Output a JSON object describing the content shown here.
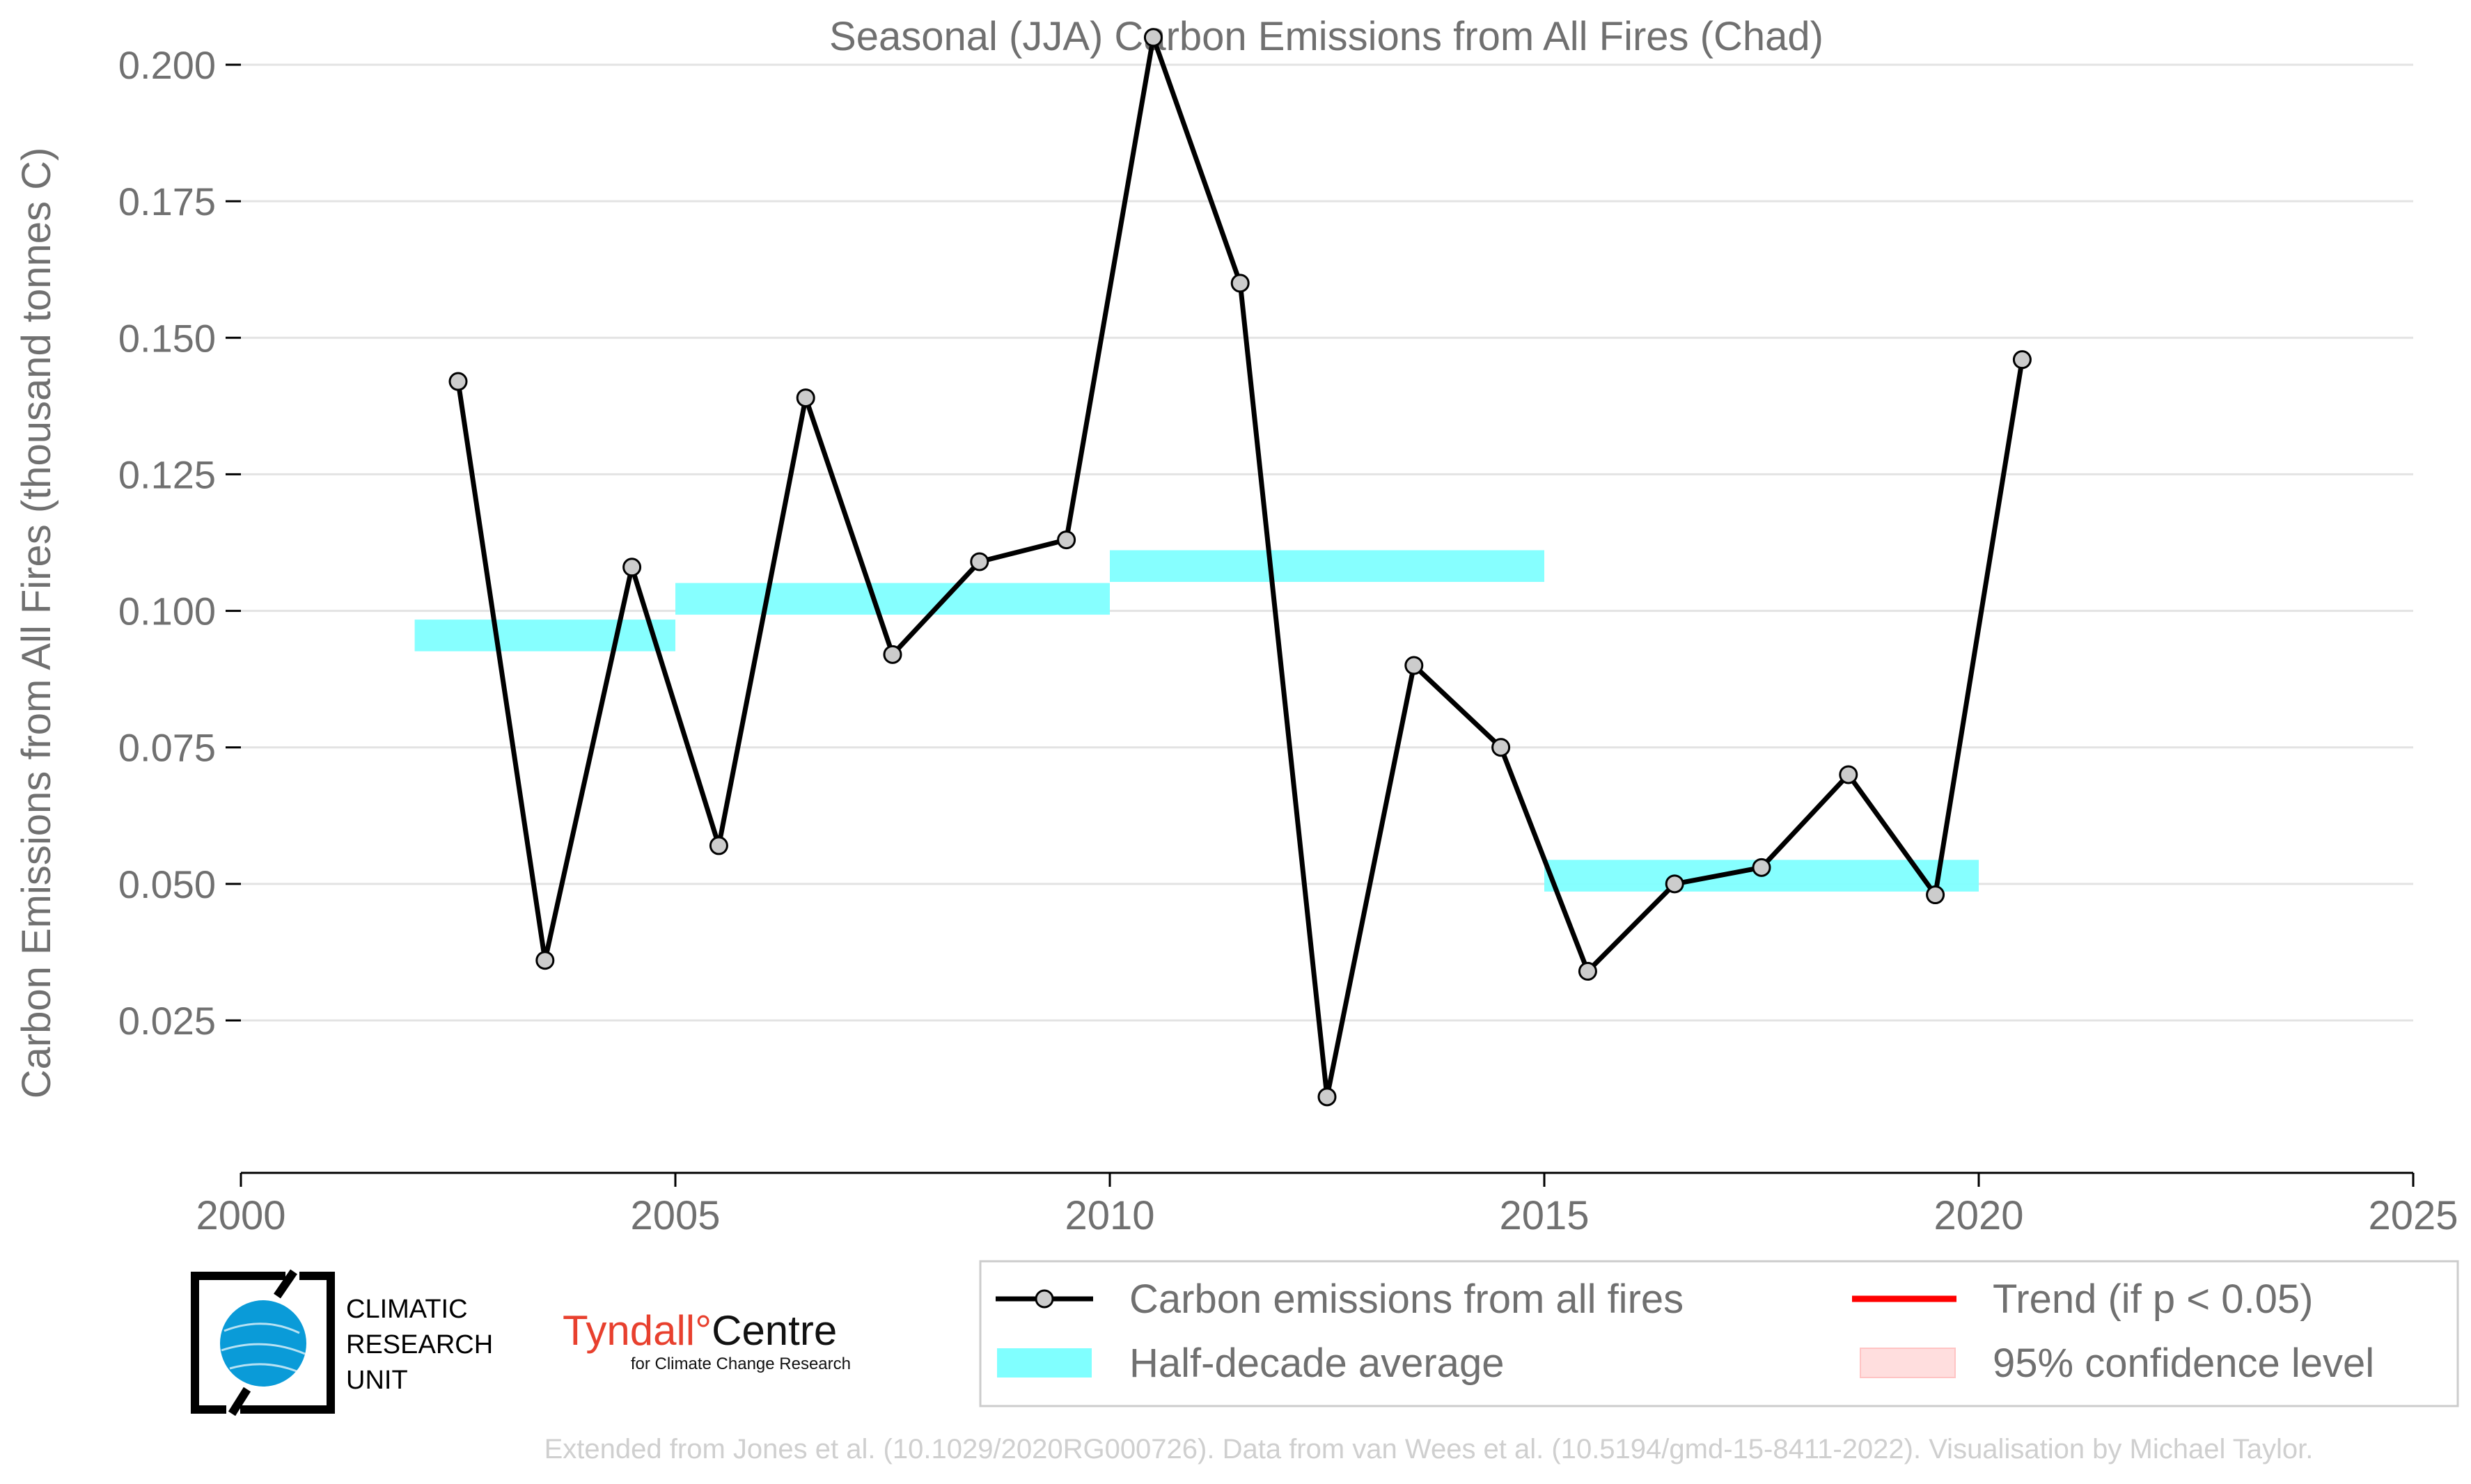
{
  "chart_data": {
    "type": "line",
    "title": "Seasonal (JJA) Carbon Emissions from All Fires (Chad)",
    "xlabel": "",
    "ylabel": "Carbon Emissions from All Fires (thousand tonnes C)",
    "xlim": [
      2000,
      2025
    ],
    "ylim": [
      -0.003,
      0.21
    ],
    "x_ticks": [
      2000,
      2005,
      2010,
      2015,
      2020,
      2025
    ],
    "y_ticks": [
      0.025,
      0.05,
      0.075,
      0.1,
      0.125,
      0.15,
      0.175,
      0.2
    ],
    "y_tick_labels": [
      "0.025",
      "0.050",
      "0.075",
      "0.100",
      "0.125",
      "0.150",
      "0.175",
      "0.200"
    ],
    "grid": "horizontal",
    "series": [
      {
        "name": "Carbon emissions from all fires",
        "x": [
          2002.5,
          2003.5,
          2004.5,
          2005.5,
          2006.5,
          2007.5,
          2008.5,
          2009.5,
          2010.5,
          2011.5,
          2012.5,
          2013.5,
          2014.5,
          2015.5,
          2016.5,
          2017.5,
          2018.5,
          2019.5,
          2020.5
        ],
        "values": [
          0.142,
          0.036,
          0.108,
          0.057,
          0.139,
          0.092,
          0.109,
          0.113,
          0.205,
          0.16,
          0.011,
          0.09,
          0.075,
          0.034,
          0.05,
          0.053,
          0.07,
          0.048,
          0.146
        ],
        "color": "#000000"
      }
    ],
    "half_decade_average": {
      "name": "Half-decade average",
      "color": "#80ffff",
      "segments": [
        {
          "x0": 2002,
          "x1": 2005,
          "value": 0.0955
        },
        {
          "x0": 2005,
          "x1": 2010,
          "value": 0.1022
        },
        {
          "x0": 2010,
          "x1": 2015,
          "value": 0.1082
        },
        {
          "x0": 2015,
          "x1": 2020,
          "value": 0.0515
        }
      ]
    },
    "legend": [
      {
        "label": "Carbon emissions from all fires",
        "kind": "line-marker",
        "color": "#000000"
      },
      {
        "label": "Trend (if p < 0.05)",
        "kind": "line",
        "color": "#ff0000"
      },
      {
        "label": "Half-decade average",
        "kind": "band",
        "color": "#80ffff"
      },
      {
        "label": "95% confidence level",
        "kind": "band",
        "color": "#ffdede"
      }
    ],
    "legend_position": "bottom-right"
  },
  "logos": {
    "cru": [
      "CLIMATIC",
      "RESEARCH",
      "UNIT"
    ],
    "tyndall_main": "Tyndall",
    "tyndall_degree": "°",
    "tyndall_centre": "Centre",
    "tyndall_sub": "for Climate Change Research"
  },
  "footer": "Extended from Jones et al. (10.1029/2020RG000726). Data from van Wees et al. (10.5194/gmd-15-8411-2022). Visualisation by Michael Taylor."
}
